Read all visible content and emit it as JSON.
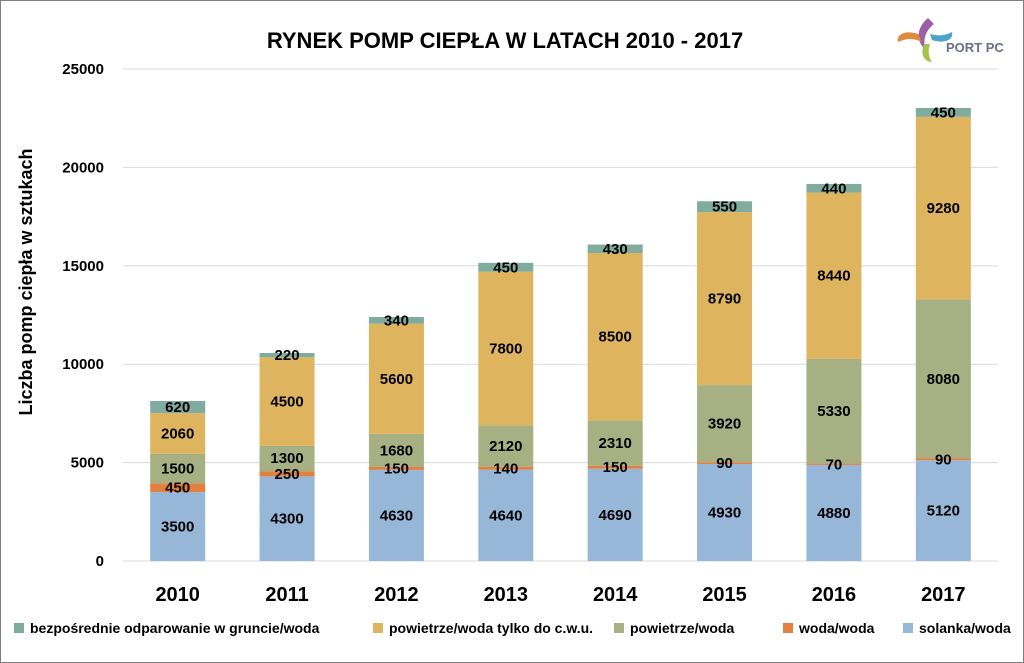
{
  "logo": {
    "text": "PORT PC"
  },
  "colors": {
    "bezposrednie": "#7fac9e",
    "cwu": "#dfb45f",
    "powietrze_woda": "#a6b083",
    "woda_woda": "#e2813f",
    "solanka_woda": "#97b7d8",
    "logo_text": "#6a6f8a",
    "grid": "#d9d9d9",
    "border": "#7f7f7f"
  },
  "chart_data": {
    "type": "bar",
    "stacked": true,
    "title": "RYNEK POMP CIEPŁA W LATACH 2010 - 2017",
    "xlabel": "",
    "ylabel": "Liczba  pomp ciepła  w sztukach",
    "ylim": [
      0,
      25000
    ],
    "yticks": [
      "0",
      "5000",
      "10000",
      "15000",
      "20000",
      "25000"
    ],
    "grid": true,
    "legend_position": "bottom",
    "categories": [
      "2010",
      "2011",
      "2012",
      "2013",
      "2014",
      "2015",
      "2016",
      "2017"
    ],
    "series": [
      {
        "name": "solanka/woda",
        "key": "solanka_woda",
        "values": [
          3500,
          4300,
          4630,
          4640,
          4690,
          4930,
          4880,
          5120
        ]
      },
      {
        "name": "woda/woda",
        "key": "woda_woda",
        "values": [
          450,
          250,
          150,
          140,
          150,
          90,
          70,
          90
        ]
      },
      {
        "name": "powietrze/woda",
        "key": "powietrze_woda",
        "values": [
          1500,
          1300,
          1680,
          2120,
          2310,
          3920,
          5330,
          8080
        ]
      },
      {
        "name": "powietrze/woda tylko do c.w.u.",
        "key": "cwu",
        "values": [
          2060,
          4500,
          5600,
          7800,
          8500,
          8790,
          8440,
          9280
        ]
      },
      {
        "name": "bezpośrednie odparowanie w gruncie/woda",
        "key": "bezposrednie",
        "values": [
          620,
          220,
          340,
          450,
          430,
          550,
          440,
          450
        ]
      }
    ],
    "legend_order": [
      "bezpośrednie odparowanie w gruncie/woda",
      "powietrze/woda tylko do c.w.u.",
      "powietrze/woda",
      "woda/woda",
      "solanka/woda"
    ]
  }
}
